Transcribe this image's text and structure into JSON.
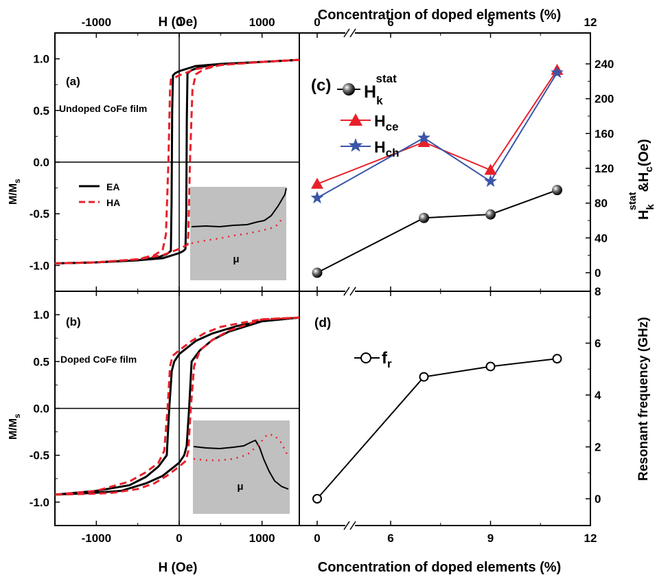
{
  "colors": {
    "black": "#000000",
    "red": "#e8202a",
    "blue": "#3a55a8",
    "inset_bg": "#c0c0c0"
  },
  "chart_data": [
    {
      "panel": "(a)",
      "type": "line",
      "title": "Undoped CoFe film",
      "xlabel": "H (Oe)",
      "ylabel": "M/Ms",
      "xlim": [
        -1500,
        1450
      ],
      "ylim": [
        -1.25,
        1.25
      ],
      "xticks": [
        "-1000",
        "0",
        "1000"
      ],
      "yticks": [
        "1.0",
        "0.5",
        "0.0",
        "-0.5",
        "-1.0"
      ],
      "legend": [
        "EA",
        "HA"
      ],
      "inset_label": "μ",
      "series": [
        {
          "name": "EA",
          "x": [
            -1500,
            -1000,
            -500,
            -250,
            -150,
            -100,
            -92,
            -85,
            -75,
            -50,
            0,
            200,
            500,
            1000,
            1450
          ],
          "y": [
            -0.98,
            -0.97,
            -0.95,
            -0.92,
            -0.89,
            -0.86,
            -0.4,
            0.5,
            0.84,
            0.86,
            0.88,
            0.93,
            0.95,
            0.97,
            0.99
          ],
          "branch": "descending"
        },
        {
          "name": "EA",
          "x": [
            1450,
            1000,
            500,
            250,
            150,
            100,
            92,
            85,
            75,
            50,
            0,
            -200,
            -500,
            -1000,
            -1500
          ],
          "y": [
            0.99,
            0.97,
            0.95,
            0.92,
            0.89,
            0.86,
            0.4,
            -0.5,
            -0.84,
            -0.86,
            -0.88,
            -0.93,
            -0.95,
            -0.97,
            -0.98
          ],
          "branch": "ascending"
        },
        {
          "name": "HA",
          "x": [
            -1500,
            -1000,
            -500,
            -300,
            -200,
            -160,
            -130,
            -110,
            -100,
            -50,
            0,
            200,
            500,
            1000,
            1450
          ],
          "y": [
            -0.98,
            -0.97,
            -0.94,
            -0.9,
            -0.85,
            -0.7,
            0.0,
            0.7,
            0.8,
            0.82,
            0.84,
            0.9,
            0.94,
            0.97,
            0.99
          ]
        },
        {
          "name": "HA",
          "x": [
            1450,
            1000,
            500,
            300,
            200,
            160,
            130,
            110,
            100,
            50,
            0,
            -200,
            -500,
            -1000,
            -1500
          ],
          "y": [
            0.99,
            0.97,
            0.94,
            0.9,
            0.85,
            0.7,
            0.0,
            -0.7,
            -0.8,
            -0.82,
            -0.84,
            -0.9,
            -0.94,
            -0.97,
            -0.98
          ]
        }
      ]
    },
    {
      "panel": "(b)",
      "type": "line",
      "title": "Doped CoFe film",
      "xlabel": "H (Oe)",
      "ylabel": "M/Ms",
      "xlim": [
        -1500,
        1450
      ],
      "ylim": [
        -1.25,
        1.25
      ],
      "xticks": [
        "-1000",
        "0",
        "1000"
      ],
      "yticks": [
        "1.0",
        "0.5",
        "0.0",
        "-0.5",
        "-1.0"
      ],
      "inset_label": "μ",
      "series": [
        {
          "name": "EA",
          "x": [
            -1500,
            -1000,
            -600,
            -400,
            -250,
            -150,
            -120,
            -90,
            -60,
            0,
            100,
            200,
            400,
            700,
            1000,
            1450
          ],
          "y": [
            -0.92,
            -0.88,
            -0.82,
            -0.73,
            -0.62,
            -0.5,
            0.0,
            0.4,
            0.5,
            0.58,
            0.65,
            0.72,
            0.8,
            0.88,
            0.93,
            0.97
          ]
        },
        {
          "name": "EA",
          "x": [
            1450,
            1000,
            600,
            400,
            250,
            150,
            120,
            90,
            60,
            0,
            -100,
            -200,
            -400,
            -700,
            -1000,
            -1500
          ],
          "y": [
            0.97,
            0.93,
            0.82,
            0.73,
            0.62,
            0.5,
            0.0,
            -0.4,
            -0.5,
            -0.58,
            -0.65,
            -0.72,
            -0.8,
            -0.88,
            -0.9,
            -0.92
          ]
        },
        {
          "name": "HA",
          "x": [
            -1500,
            -1000,
            -600,
            -400,
            -250,
            -180,
            -140,
            -110,
            -80,
            0,
            150,
            300,
            500,
            800,
            1000,
            1450
          ],
          "y": [
            -0.92,
            -0.88,
            -0.78,
            -0.68,
            -0.58,
            -0.45,
            0.0,
            0.45,
            0.56,
            0.62,
            0.72,
            0.8,
            0.87,
            0.92,
            0.95,
            0.97
          ]
        },
        {
          "name": "HA",
          "x": [
            1450,
            1000,
            600,
            400,
            250,
            180,
            140,
            110,
            80,
            0,
            -150,
            -300,
            -500,
            -800,
            -1000,
            -1500
          ],
          "y": [
            0.97,
            0.95,
            0.83,
            0.73,
            0.62,
            0.45,
            0.0,
            -0.45,
            -0.56,
            -0.62,
            -0.72,
            -0.8,
            -0.86,
            -0.9,
            -0.91,
            -0.92
          ]
        }
      ]
    },
    {
      "panel": "(c)",
      "type": "line",
      "xlabel": "Concentration of doped elements  (%)",
      "ylabel": "H_k^stat & H_c (Oe)",
      "xticks": [
        "0",
        "6",
        "9",
        "12"
      ],
      "yticks": [
        "0",
        "40",
        "80",
        "120",
        "160",
        "200",
        "240"
      ],
      "ylim": [
        -15,
        250
      ],
      "axis_break": "between 0 and 6",
      "categories": [
        "0",
        "7",
        "9",
        "11"
      ],
      "series": [
        {
          "name": "Hk stat",
          "marker": "ball",
          "values": [
            0,
            63,
            67,
            95
          ]
        },
        {
          "name": "Hce",
          "marker": "triangle",
          "values": [
            102,
            150,
            118,
            233
          ]
        },
        {
          "name": "Hch",
          "marker": "star",
          "values": [
            86,
            155,
            105,
            230
          ]
        }
      ]
    },
    {
      "panel": "(d)",
      "type": "line",
      "xlabel": "Concentration of doped elements (%)",
      "ylabel": "Resonant frequency (GHz)",
      "xticks": [
        "0",
        "6",
        "9",
        "12"
      ],
      "yticks": [
        "0",
        "2",
        "4",
        "6",
        "8"
      ],
      "ylim": [
        -1,
        8
      ],
      "axis_break": "between 0 and 6",
      "categories": [
        "0",
        "7",
        "9",
        "11"
      ],
      "series": [
        {
          "name": "fr",
          "marker": "open-circle",
          "values": [
            0.0,
            4.7,
            5.1,
            5.4
          ]
        }
      ]
    }
  ],
  "labels": {
    "top_left_axis": "H (Oe)",
    "bottom_left_axis": "H (Oe)",
    "top_right_axis": "Concentration of doped elements  (%)",
    "bottom_right_axis": "Concentration of doped elements (%)",
    "panel_a": "(a)",
    "panel_b": "(b)",
    "panel_c": "(c)",
    "panel_d": "(d)",
    "undoped": "Undoped CoFe film",
    "doped": "Doped CoFe film",
    "legend_ea": "EA",
    "legend_ha": "HA",
    "mu": "μ",
    "right_ylabel_bottom": "Resonant frequency (GHz)"
  }
}
